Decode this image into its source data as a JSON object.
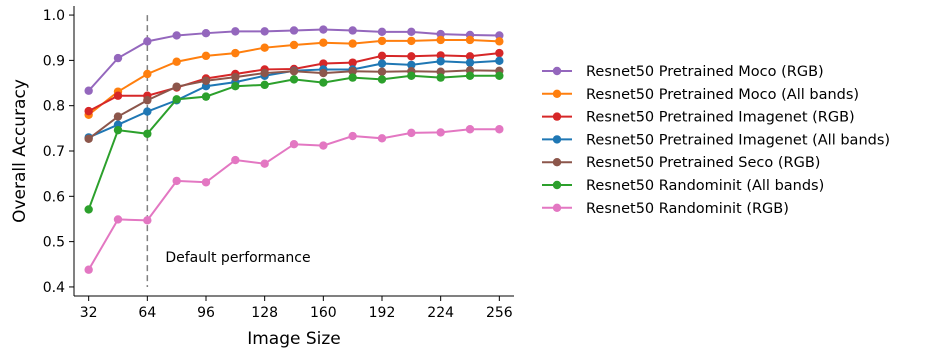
{
  "chart_data": {
    "type": "line",
    "xlabel": "Image Size",
    "ylabel": "Overall Accuracy",
    "xlim": [
      24,
      264
    ],
    "ylim": [
      0.38,
      1.02
    ],
    "xticks": [
      32,
      64,
      96,
      128,
      160,
      192,
      224,
      256
    ],
    "yticks": [
      0.4,
      0.5,
      0.6,
      0.7,
      0.8,
      0.9,
      1.0
    ],
    "xtick_labels": [
      "32",
      "64",
      "96",
      "128",
      "160",
      "192",
      "224",
      "256"
    ],
    "ytick_labels": [
      "0.4",
      "0.5",
      "0.6",
      "0.7",
      "0.8",
      "0.9",
      "1.0"
    ],
    "grid": false,
    "legend_position": "right",
    "annotation": {
      "text": "Default performance",
      "x": 64,
      "line_style": "dashed",
      "color": "#808080"
    },
    "x": [
      32,
      48,
      64,
      80,
      96,
      112,
      128,
      144,
      160,
      176,
      192,
      208,
      224,
      240,
      256
    ],
    "series": [
      {
        "name": "Resnet50 Pretrained Moco (RGB)",
        "color": "#9467bd",
        "values": [
          0.833,
          0.905,
          0.942,
          0.955,
          0.96,
          0.964,
          0.964,
          0.966,
          0.968,
          0.966,
          0.963,
          0.963,
          0.958,
          0.956,
          0.955
        ]
      },
      {
        "name": "Resnet50 Pretrained Moco (All bands)",
        "color": "#ff7f0e",
        "values": [
          0.78,
          0.831,
          0.87,
          0.897,
          0.91,
          0.916,
          0.928,
          0.934,
          0.939,
          0.937,
          0.943,
          0.943,
          0.945,
          0.945,
          0.942
        ]
      },
      {
        "name": "Resnet50 Pretrained Imagenet (RGB)",
        "color": "#d62728",
        "values": [
          0.788,
          0.822,
          0.822,
          0.84,
          0.86,
          0.87,
          0.88,
          0.881,
          0.893,
          0.895,
          0.91,
          0.909,
          0.911,
          0.909,
          0.916
        ]
      },
      {
        "name": "Resnet50 Pretrained Imagenet (All bands)",
        "color": "#1f77b4",
        "values": [
          0.73,
          0.758,
          0.787,
          0.812,
          0.843,
          0.852,
          0.866,
          0.877,
          0.88,
          0.88,
          0.893,
          0.89,
          0.898,
          0.895,
          0.899
        ]
      },
      {
        "name": "Resnet50 Pretrained Seco (RGB)",
        "color": "#8c564b",
        "values": [
          0.727,
          0.776,
          0.812,
          0.842,
          0.855,
          0.863,
          0.872,
          0.876,
          0.872,
          0.876,
          0.875,
          0.876,
          0.875,
          0.878,
          0.877
        ]
      },
      {
        "name": "Resnet50 Randominit (All bands)",
        "color": "#2ca02c",
        "values": [
          0.571,
          0.746,
          0.738,
          0.814,
          0.82,
          0.843,
          0.846,
          0.858,
          0.851,
          0.862,
          0.858,
          0.866,
          0.862,
          0.866,
          0.866
        ]
      },
      {
        "name": "Resnet50 Randominit (RGB)",
        "color": "#e377c2",
        "values": [
          0.438,
          0.549,
          0.547,
          0.634,
          0.631,
          0.68,
          0.672,
          0.715,
          0.712,
          0.733,
          0.728,
          0.74,
          0.741,
          0.748,
          0.748
        ]
      }
    ]
  }
}
